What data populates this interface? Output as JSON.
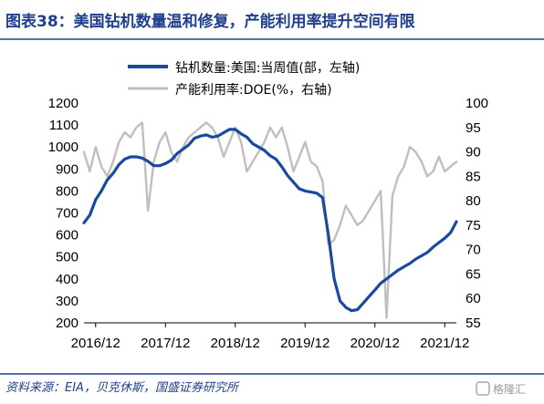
{
  "header": {
    "title": "图表38：美国钻机数量温和修复，产能利用率提升空间有限"
  },
  "footer": {
    "source": "资料来源：EIA，贝克休斯，国盛证券研究所",
    "watermark": "格隆汇"
  },
  "colors": {
    "rig_series": "#1a4aa0",
    "util_series": "#bfbfbf",
    "title": "#1f3f8c",
    "rule": "#1f3f8c"
  },
  "chart_data": {
    "type": "line",
    "x_tick_labels": [
      "2016/12",
      "2017/12",
      "2018/12",
      "2019/12",
      "2020/12",
      "2021/12"
    ],
    "x_range": [
      "2016-10",
      "2022-02"
    ],
    "y_left": {
      "ticks": [
        "200",
        "300",
        "400",
        "500",
        "600",
        "700",
        "800",
        "900",
        "1000",
        "1100",
        "1200"
      ],
      "range": [
        200,
        1200
      ]
    },
    "y_right": {
      "ticks": [
        "55",
        "60",
        "65",
        "70",
        "75",
        "80",
        "85",
        "90",
        "95",
        "100"
      ],
      "range": [
        55,
        100
      ]
    },
    "legend": {
      "position": "top-center"
    },
    "series": [
      {
        "name": "钻机数量:美国:当周值(部，左轴)",
        "axis": "left",
        "color": "#1a4aa0",
        "points": [
          [
            "2016-10",
            655
          ],
          [
            "2016-11",
            690
          ],
          [
            "2016-12",
            760
          ],
          [
            "2017-01",
            800
          ],
          [
            "2017-02",
            850
          ],
          [
            "2017-03",
            880
          ],
          [
            "2017-04",
            920
          ],
          [
            "2017-05",
            945
          ],
          [
            "2017-06",
            955
          ],
          [
            "2017-07",
            955
          ],
          [
            "2017-08",
            950
          ],
          [
            "2017-09",
            935
          ],
          [
            "2017-10",
            915
          ],
          [
            "2017-11",
            915
          ],
          [
            "2017-12",
            925
          ],
          [
            "2018-01",
            940
          ],
          [
            "2018-02",
            970
          ],
          [
            "2018-03",
            990
          ],
          [
            "2018-04",
            1010
          ],
          [
            "2018-05",
            1040
          ],
          [
            "2018-06",
            1050
          ],
          [
            "2018-07",
            1055
          ],
          [
            "2018-08",
            1045
          ],
          [
            "2018-09",
            1050
          ],
          [
            "2018-10",
            1065
          ],
          [
            "2018-11",
            1080
          ],
          [
            "2018-12",
            1080
          ],
          [
            "2019-01",
            1060
          ],
          [
            "2019-02",
            1045
          ],
          [
            "2019-03",
            1015
          ],
          [
            "2019-04",
            1000
          ],
          [
            "2019-05",
            985
          ],
          [
            "2019-06",
            960
          ],
          [
            "2019-07",
            945
          ],
          [
            "2019-08",
            910
          ],
          [
            "2019-09",
            870
          ],
          [
            "2019-10",
            840
          ],
          [
            "2019-11",
            810
          ],
          [
            "2019-12",
            800
          ],
          [
            "2020-01",
            795
          ],
          [
            "2020-02",
            790
          ],
          [
            "2020-03",
            770
          ],
          [
            "2020-04",
            600
          ],
          [
            "2020-05",
            400
          ],
          [
            "2020-06",
            300
          ],
          [
            "2020-07",
            270
          ],
          [
            "2020-08",
            255
          ],
          [
            "2020-09",
            260
          ],
          [
            "2020-10",
            290
          ],
          [
            "2020-11",
            320
          ],
          [
            "2020-12",
            350
          ],
          [
            "2021-01",
            380
          ],
          [
            "2021-02",
            400
          ],
          [
            "2021-03",
            420
          ],
          [
            "2021-04",
            440
          ],
          [
            "2021-05",
            455
          ],
          [
            "2021-06",
            470
          ],
          [
            "2021-07",
            490
          ],
          [
            "2021-08",
            505
          ],
          [
            "2021-09",
            520
          ],
          [
            "2021-10",
            545
          ],
          [
            "2021-11",
            565
          ],
          [
            "2021-12",
            585
          ],
          [
            "2022-01",
            610
          ],
          [
            "2022-02",
            660
          ]
        ]
      },
      {
        "name": "产能利用率:DOE(%，右轴)",
        "axis": "right",
        "color": "#bfbfbf",
        "points": [
          [
            "2016-10",
            90
          ],
          [
            "2016-11",
            86
          ],
          [
            "2016-12",
            91
          ],
          [
            "2017-01",
            87
          ],
          [
            "2017-02",
            85
          ],
          [
            "2017-03",
            88
          ],
          [
            "2017-04",
            92
          ],
          [
            "2017-05",
            94
          ],
          [
            "2017-06",
            93
          ],
          [
            "2017-07",
            95
          ],
          [
            "2017-08",
            96
          ],
          [
            "2017-09",
            78
          ],
          [
            "2017-10",
            88
          ],
          [
            "2017-11",
            92
          ],
          [
            "2017-12",
            94
          ],
          [
            "2018-01",
            90
          ],
          [
            "2018-02",
            88
          ],
          [
            "2018-03",
            91
          ],
          [
            "2018-04",
            93
          ],
          [
            "2018-05",
            94
          ],
          [
            "2018-06",
            95
          ],
          [
            "2018-07",
            96
          ],
          [
            "2018-08",
            95
          ],
          [
            "2018-09",
            93
          ],
          [
            "2018-10",
            89
          ],
          [
            "2018-11",
            92
          ],
          [
            "2018-12",
            95
          ],
          [
            "2019-01",
            92
          ],
          [
            "2019-02",
            86
          ],
          [
            "2019-03",
            88
          ],
          [
            "2019-04",
            90
          ],
          [
            "2019-05",
            92
          ],
          [
            "2019-06",
            95
          ],
          [
            "2019-07",
            93
          ],
          [
            "2019-08",
            95
          ],
          [
            "2019-09",
            91
          ],
          [
            "2019-10",
            86
          ],
          [
            "2019-11",
            89
          ],
          [
            "2019-12",
            92
          ],
          [
            "2020-01",
            88
          ],
          [
            "2020-02",
            87
          ],
          [
            "2020-03",
            84
          ],
          [
            "2020-04",
            71
          ],
          [
            "2020-05",
            72
          ],
          [
            "2020-06",
            75
          ],
          [
            "2020-07",
            79
          ],
          [
            "2020-08",
            77
          ],
          [
            "2020-09",
            75
          ],
          [
            "2020-10",
            76
          ],
          [
            "2020-11",
            78
          ],
          [
            "2020-12",
            80
          ],
          [
            "2021-01",
            82
          ],
          [
            "2021-02",
            56
          ],
          [
            "2021-03",
            81
          ],
          [
            "2021-04",
            85
          ],
          [
            "2021-05",
            87
          ],
          [
            "2021-06",
            91
          ],
          [
            "2021-07",
            90
          ],
          [
            "2021-08",
            88
          ],
          [
            "2021-09",
            85
          ],
          [
            "2021-10",
            86
          ],
          [
            "2021-11",
            89
          ],
          [
            "2021-12",
            86
          ],
          [
            "2022-01",
            87
          ],
          [
            "2022-02",
            88
          ]
        ]
      }
    ]
  }
}
